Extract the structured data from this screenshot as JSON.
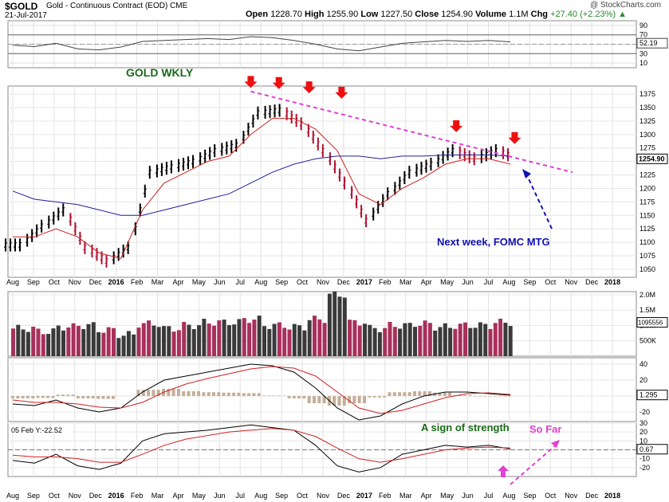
{
  "header": {
    "symbol": "$GOLD",
    "description": "Gold - Continuous Contract (EOD)",
    "exchange": "CME",
    "date": "21-Jul-2017",
    "watermark": "@ StockCharts.com",
    "open_label": "Open",
    "open": "1228.70",
    "high_label": "High",
    "high": "1255.90",
    "low_label": "Low",
    "low": "1227.50",
    "close_label": "Close",
    "close": "1254.90",
    "volume_label": "Volume",
    "volume": "1.1M",
    "chg_label": "Chg",
    "chg": "+27.40 (+2.23%)",
    "chg_arrow": "▲"
  },
  "colors": {
    "up_bar": "#000000",
    "down_bar": "#b01030",
    "ma_short": "#d02020",
    "ma_long": "#20209a",
    "trendline": "#e040d0",
    "volume_up": "#3a3a3a",
    "volume_down": "#a8305a",
    "annotation_green": "#1a6a1a",
    "annotation_blue": "#1010b0",
    "arrow_red": "#ee1010"
  },
  "annotations": {
    "title": "GOLD WKLY",
    "fomc": "Next week,  FOMC MTG",
    "strength": "A sign of strength",
    "so_far": "So Far",
    "indicator_label": "05 Feb Y:-22.52"
  },
  "x_axis": {
    "labels": [
      "Aug",
      "Sep",
      "Oct",
      "Nov",
      "Dec",
      "2016",
      "Feb",
      "Mar",
      "Apr",
      "May",
      "Jun",
      "Jul",
      "Aug",
      "Sep",
      "Oct",
      "Nov",
      "Dec",
      "2017",
      "Feb",
      "Mar",
      "Apr",
      "May",
      "Jun",
      "Jul",
      "Aug",
      "Sep",
      "Oct",
      "Nov",
      "Dec",
      "2018"
    ],
    "bold": [
      "2016",
      "2017",
      "2018"
    ]
  },
  "chart_data": [
    {
      "type": "line",
      "panel": "rsi",
      "y_ticks": [
        90,
        70,
        50,
        30,
        10
      ],
      "last_value_label": "52.19",
      "reference_lines": [
        70,
        30
      ],
      "series": []
    },
    {
      "type": "line",
      "panel": "price",
      "title": "GOLD WKLY",
      "ylim": [
        1035,
        1390
      ],
      "y_ticks": [
        1375,
        1350,
        1325,
        1300,
        1275,
        1250,
        1225,
        1200,
        1175,
        1150,
        1125,
        1100,
        1075,
        1050
      ],
      "last_value_label": "1254.90",
      "x": [
        "Aug 2015",
        "Sep 2015",
        "Oct 2015",
        "Nov 2015",
        "Dec 2015",
        "Jan 2016",
        "Feb 2016",
        "Mar 2016",
        "Apr 2016",
        "May 2016",
        "Jun 2016",
        "Jul 2016",
        "Aug 2016",
        "Sep 2016",
        "Oct 2016",
        "Nov 2016",
        "Dec 2016",
        "Jan 2017",
        "Feb 2017",
        "Mar 2017",
        "Apr 2017",
        "May 2017",
        "Jun 2017",
        "Jul 2017"
      ],
      "series": [
        {
          "values": [
            1095,
            1130,
            1160,
            1090,
            1065,
            1090,
            1230,
            1240,
            1250,
            1270,
            1280,
            1340,
            1345,
            1320,
            1270,
            1210,
            1140,
            1190,
            1230,
            1245,
            1270,
            1255,
            1270,
            1255
          ]
        },
        {
          "values": [
            1110,
            1110,
            1125,
            1110,
            1080,
            1070,
            1160,
            1210,
            1230,
            1250,
            1260,
            1300,
            1330,
            1330,
            1310,
            1270,
            1190,
            1170,
            1200,
            1220,
            1245,
            1255,
            1255,
            1245
          ]
        },
        {
          "values": [
            1195,
            1180,
            1175,
            1170,
            1160,
            1150,
            1150,
            1160,
            1170,
            1180,
            1190,
            1210,
            1230,
            1245,
            1255,
            1260,
            1260,
            1255,
            1260,
            1260,
            1262,
            1262,
            1262,
            1260
          ]
        }
      ]
    },
    {
      "type": "bar",
      "panel": "volume",
      "y_ticks_labels": [
        "2.0M",
        "1.5M",
        "1.0M",
        "500K"
      ],
      "last_value_label": "1095556",
      "values": [
        0.9,
        0.8,
        0.95,
        1.0,
        0.85,
        0.7,
        1.05,
        0.9,
        1.0,
        1.1,
        1.1,
        1.2,
        1.0,
        0.95,
        1.2,
        2.0,
        1.1,
        0.9,
        1.0,
        1.05,
        0.95,
        1.0,
        1.0,
        1.1
      ]
    },
    {
      "type": "line",
      "panel": "macd",
      "y_ticks": [
        40,
        20,
        0,
        -20
      ],
      "last_value_label": "1.295",
      "series": [
        {
          "values": [
            -10,
            -12,
            -5,
            -15,
            -20,
            -15,
            5,
            20,
            25,
            30,
            35,
            40,
            38,
            30,
            10,
            -15,
            -30,
            -25,
            -10,
            0,
            5,
            5,
            3,
            1
          ]
        },
        {
          "values": [
            -5,
            -8,
            -8,
            -10,
            -14,
            -15,
            -8,
            5,
            15,
            22,
            28,
            34,
            37,
            35,
            25,
            5,
            -15,
            -22,
            -18,
            -10,
            -2,
            3,
            4,
            2
          ]
        }
      ]
    },
    {
      "type": "line",
      "panel": "indicator",
      "y_ticks": [
        30,
        20,
        10,
        0,
        -10,
        -20
      ],
      "last_value_label": "0.67",
      "series": [
        {
          "values": [
            -12,
            -15,
            -5,
            -18,
            -22,
            -15,
            10,
            18,
            20,
            22,
            25,
            28,
            25,
            22,
            5,
            -18,
            -25,
            -20,
            -5,
            0,
            5,
            3,
            5,
            1
          ]
        },
        {
          "values": [
            -6,
            -8,
            -8,
            -10,
            -14,
            -14,
            -5,
            5,
            12,
            16,
            20,
            22,
            24,
            22,
            15,
            2,
            -10,
            -14,
            -10,
            -5,
            0,
            2,
            3,
            2
          ]
        }
      ]
    }
  ]
}
